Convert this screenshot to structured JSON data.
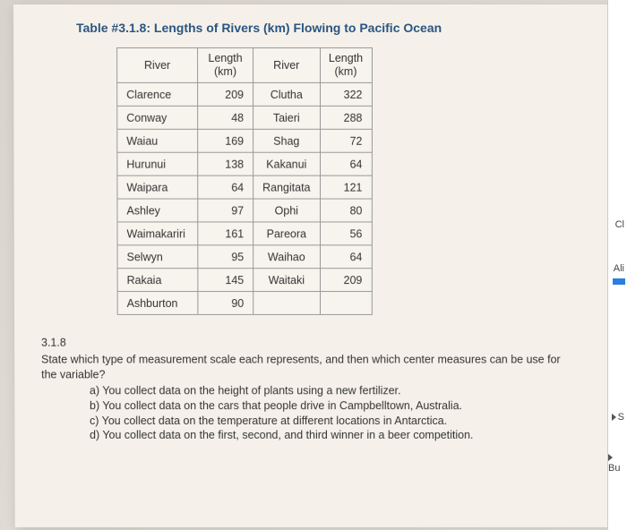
{
  "title": "Table #3.1.8: Lengths of Rivers (km) Flowing to Pacific Ocean",
  "table": {
    "header": {
      "col1": "River",
      "col2_main": "Length",
      "col2_sub": "(km)",
      "col3": "River",
      "col4_main": "Length",
      "col4_sub": "(km)"
    },
    "rows": [
      {
        "r1": "Clarence",
        "l1": "209",
        "r2": "Clutha",
        "l2": "322"
      },
      {
        "r1": "Conway",
        "l1": "48",
        "r2": "Taieri",
        "l2": "288"
      },
      {
        "r1": "Waiau",
        "l1": "169",
        "r2": "Shag",
        "l2": "72"
      },
      {
        "r1": "Hurunui",
        "l1": "138",
        "r2": "Kakanui",
        "l2": "64"
      },
      {
        "r1": "Waipara",
        "l1": "64",
        "r2": "Rangitata",
        "l2": "121"
      },
      {
        "r1": "Ashley",
        "l1": "97",
        "r2": "Ophi",
        "l2": "80"
      },
      {
        "r1": "Waimakariri",
        "l1": "161",
        "r2": "Pareora",
        "l2": "56"
      },
      {
        "r1": "Selwyn",
        "l1": "95",
        "r2": "Waihao",
        "l2": "64"
      },
      {
        "r1": "Rakaia",
        "l1": "145",
        "r2": "Waitaki",
        "l2": "209"
      },
      {
        "r1": "Ashburton",
        "l1": "90",
        "r2": "",
        "l2": ""
      }
    ]
  },
  "question": {
    "number": "3.1.8",
    "text": "State which type of measurement scale each represents, and then which center measures can be use for the variable?",
    "options": {
      "a": "a)  You collect data on the height of plants using a new fertilizer.",
      "b": "b)  You collect data on the cars that people drive in Campbelltown, Australia.",
      "c": "c)  You collect data on the temperature at different locations in Antarctica.",
      "d": "d)  You collect data on the first, second, and third winner in a beer competition."
    }
  },
  "edge": {
    "ci": "Cl",
    "ali": "Ali",
    "s": "S",
    "b": "Bu"
  }
}
